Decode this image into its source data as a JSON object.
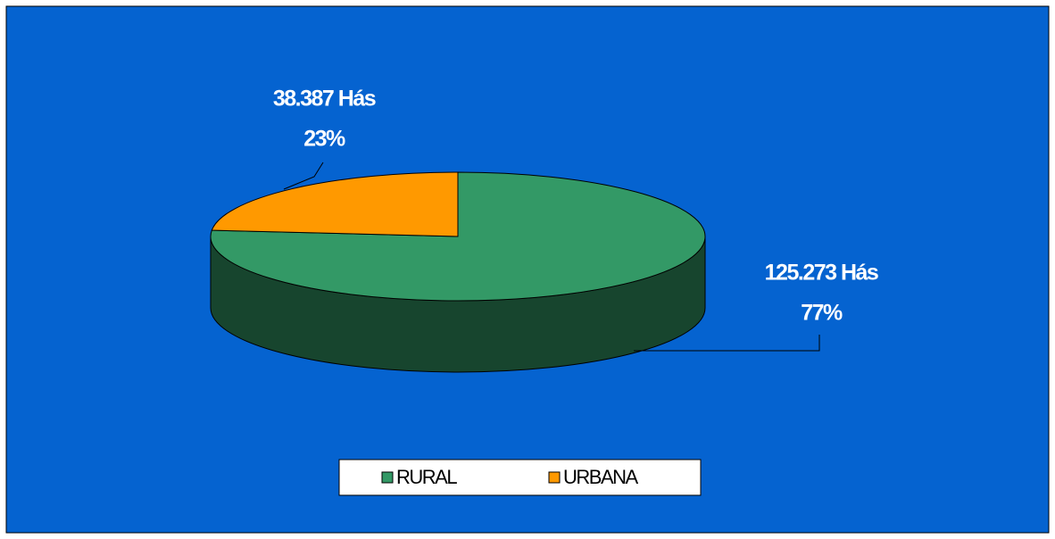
{
  "chart_data": {
    "type": "pie3d",
    "categories": [
      "RURAL",
      "URBANA"
    ],
    "values": [
      125273,
      38387
    ],
    "value_labels": [
      "125.273 Hás",
      "38.387 Hás"
    ],
    "percent_labels": [
      "77%",
      "23%"
    ],
    "colors": [
      "#339966",
      "#ff9900"
    ],
    "legend": "bottom"
  }
}
